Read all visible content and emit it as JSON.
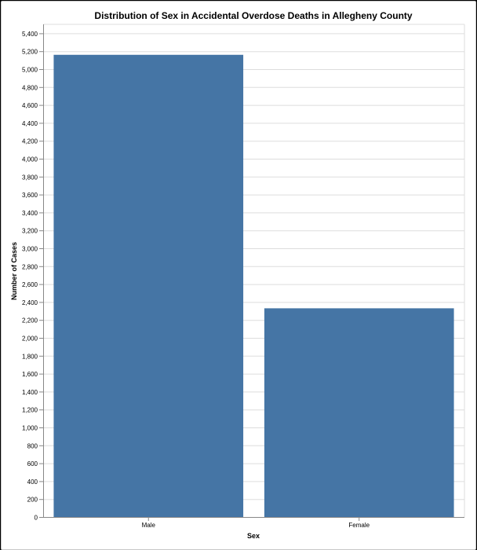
{
  "chart_data": {
    "type": "bar",
    "title": "Distribution of Sex in Accidental Overdose Deaths in Allegheny County",
    "xlabel": "Sex",
    "ylabel": "Number of Cases",
    "categories": [
      "Male",
      "Female"
    ],
    "values": [
      5160,
      2330
    ],
    "ylim": [
      0,
      5500
    ],
    "yticks": [
      0,
      200,
      400,
      600,
      800,
      1000,
      1200,
      1400,
      1600,
      1800,
      2000,
      2200,
      2400,
      2600,
      2800,
      3000,
      3200,
      3400,
      3600,
      3800,
      4000,
      4200,
      4400,
      4600,
      4800,
      5000,
      5200,
      5400
    ],
    "grid": true,
    "bar_color": "#4575a5"
  }
}
